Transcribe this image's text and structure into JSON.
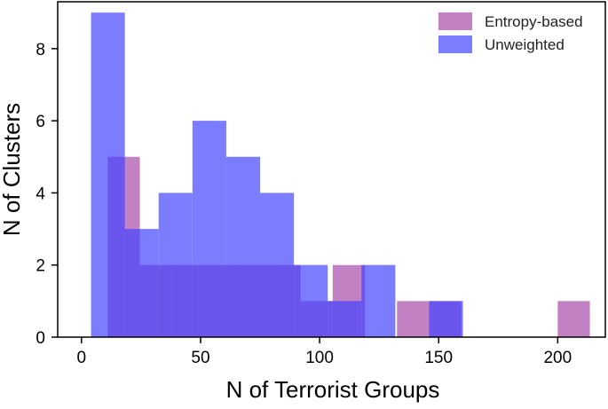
{
  "chart_data": {
    "type": "histogram",
    "xlabel": "N of Terrorist Groups",
    "ylabel": "N of Clusters",
    "xlim": [
      -10,
      220
    ],
    "ylim": [
      0,
      9.3
    ],
    "xticks": [
      0,
      50,
      100,
      150,
      200
    ],
    "yticks": [
      0,
      2,
      4,
      6,
      8
    ],
    "grid": false,
    "legend": {
      "position": "top-right",
      "entries": [
        "Entropy-based",
        "Unweighted"
      ]
    },
    "series": [
      {
        "name": "Entropy-based",
        "color": "#a84ca8",
        "bins": [
          {
            "x0": 11.0,
            "x1": 24.5,
            "count": 5
          },
          {
            "x0": 24.5,
            "x1": 38.0,
            "count": 2
          },
          {
            "x0": 38.0,
            "x1": 51.5,
            "count": 2
          },
          {
            "x0": 51.5,
            "x1": 65.0,
            "count": 2
          },
          {
            "x0": 65.0,
            "x1": 78.5,
            "count": 2
          },
          {
            "x0": 78.5,
            "x1": 92.0,
            "count": 2
          },
          {
            "x0": 92.0,
            "x1": 105.5,
            "count": 1
          },
          {
            "x0": 105.5,
            "x1": 119.0,
            "count": 2
          },
          {
            "x0": 119.0,
            "x1": 132.5,
            "count": 0
          },
          {
            "x0": 132.5,
            "x1": 146.0,
            "count": 1
          },
          {
            "x0": 146.0,
            "x1": 159.5,
            "count": 1
          },
          {
            "x0": 159.5,
            "x1": 173.0,
            "count": 0
          },
          {
            "x0": 173.0,
            "x1": 186.5,
            "count": 0
          },
          {
            "x0": 186.5,
            "x1": 200.0,
            "count": 0
          },
          {
            "x0": 200.0,
            "x1": 213.5,
            "count": 1
          }
        ]
      },
      {
        "name": "Unweighted",
        "color": "#4444ff",
        "bins": [
          {
            "x0": 4.0,
            "x1": 18.2,
            "count": 9
          },
          {
            "x0": 18.2,
            "x1": 32.4,
            "count": 3
          },
          {
            "x0": 32.4,
            "x1": 46.6,
            "count": 4
          },
          {
            "x0": 46.6,
            "x1": 60.8,
            "count": 6
          },
          {
            "x0": 60.8,
            "x1": 75.0,
            "count": 5
          },
          {
            "x0": 75.0,
            "x1": 89.2,
            "count": 4
          },
          {
            "x0": 89.2,
            "x1": 103.4,
            "count": 2
          },
          {
            "x0": 103.4,
            "x1": 117.6,
            "count": 1
          },
          {
            "x0": 117.6,
            "x1": 131.8,
            "count": 2
          },
          {
            "x0": 131.8,
            "x1": 146.0,
            "count": 0
          },
          {
            "x0": 146.0,
            "x1": 160.2,
            "count": 1
          }
        ]
      }
    ]
  }
}
